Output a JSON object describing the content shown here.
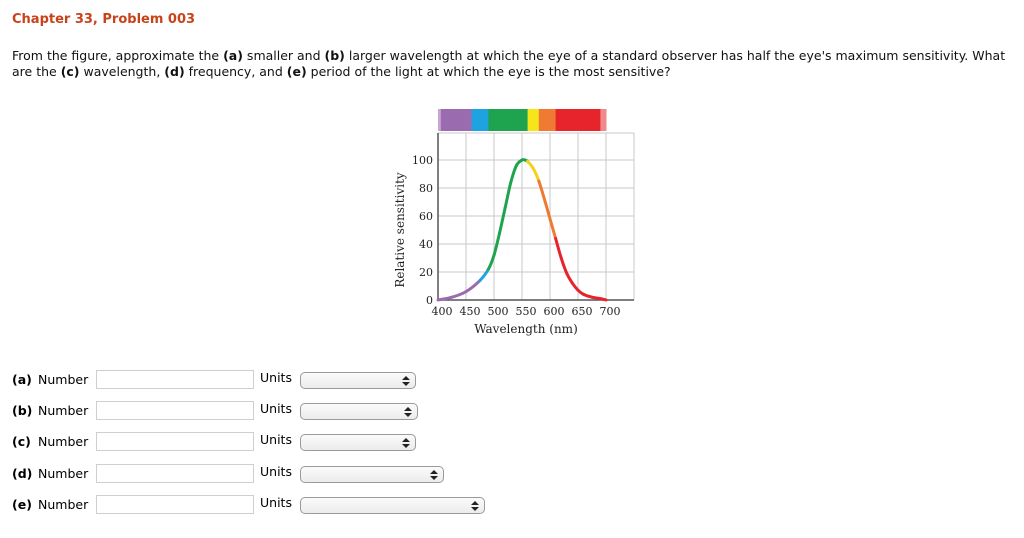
{
  "header": {
    "title": "Chapter 33, Problem 003"
  },
  "problem": {
    "text_segments": [
      {
        "t": "From the figure, approximate the ",
        "b": false
      },
      {
        "t": "(a)",
        "b": true
      },
      {
        "t": " smaller and ",
        "b": false
      },
      {
        "t": "(b)",
        "b": true
      },
      {
        "t": " larger wavelength at which the eye of a standard observer has half the eye's maximum sensitivity. What are the ",
        "b": false
      },
      {
        "t": "(c)",
        "b": true
      },
      {
        "t": " wavelength, ",
        "b": false
      },
      {
        "t": "(d)",
        "b": true
      },
      {
        "t": " frequency, and ",
        "b": false
      },
      {
        "t": "(e)",
        "b": true
      },
      {
        "t": " period of the light at which the eye is the most sensitive?",
        "b": false
      }
    ]
  },
  "figure": {
    "spectrum_bar": [
      {
        "color": "#c9a7d2",
        "from": 400,
        "to": 405
      },
      {
        "color": "#9b6bb0",
        "from": 405,
        "to": 460
      },
      {
        "color": "#1fa3e0",
        "from": 460,
        "to": 490
      },
      {
        "color": "#1ea34f",
        "from": 490,
        "to": 560
      },
      {
        "color": "#f7e51c",
        "from": 560,
        "to": 580
      },
      {
        "color": "#ee7a34",
        "from": 580,
        "to": 610
      },
      {
        "color": "#e7232b",
        "from": 610,
        "to": 690
      },
      {
        "color": "#f08a8a",
        "from": 690,
        "to": 700
      }
    ]
  },
  "chart_data": {
    "type": "line",
    "title": "",
    "xlabel": "Wavelength (nm)",
    "ylabel": "Relative sensitivity",
    "xlim": [
      400,
      750
    ],
    "ylim": [
      0,
      120
    ],
    "xticks": [
      400,
      450,
      500,
      550,
      600,
      650,
      700
    ],
    "yticks": [
      0,
      20,
      40,
      60,
      80,
      100
    ],
    "grid": true,
    "legend": null,
    "series": [
      {
        "name": "Relative sensitivity",
        "x": [
          400,
          425,
          450,
          475,
          490,
          500,
          510,
          520,
          530,
          540,
          550,
          555,
          560,
          570,
          580,
          590,
          600,
          610,
          620,
          630,
          640,
          650,
          660,
          675,
          690,
          700
        ],
        "y": [
          0,
          2,
          6,
          14,
          22,
          32,
          48,
          66,
          84,
          96,
          100,
          100,
          99,
          94,
          85,
          72,
          58,
          44,
          30,
          19,
          12,
          7,
          4,
          2,
          1,
          0
        ]
      }
    ]
  },
  "form": {
    "rows": [
      {
        "part": "(a)",
        "number_label": "Number",
        "value": "",
        "units_label": "Units",
        "units_value": "",
        "select_width": 116
      },
      {
        "part": "(b)",
        "number_label": "Number",
        "value": "",
        "units_label": "Units",
        "units_value": "",
        "select_width": 118
      },
      {
        "part": "(c)",
        "number_label": "Number",
        "value": "",
        "units_label": "Units",
        "units_value": "",
        "select_width": 116
      },
      {
        "part": "(d)",
        "number_label": "Number",
        "value": "",
        "units_label": "Units",
        "units_value": "",
        "select_width": 144
      },
      {
        "part": "(e)",
        "number_label": "Number",
        "value": "",
        "units_label": "Units",
        "units_value": "",
        "select_width": 185
      }
    ]
  }
}
